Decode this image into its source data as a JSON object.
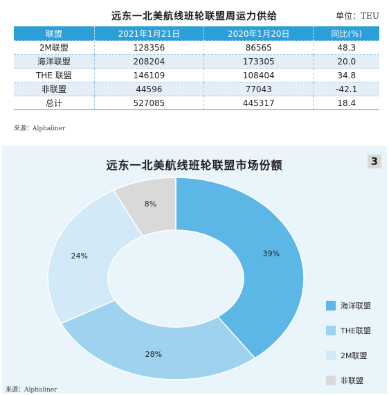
{
  "table": {
    "title": "远东一北美航线班轮联盟周运力供给",
    "unit": "单位：TEU",
    "headers": [
      "联盟",
      "2021年1月21日",
      "2020年1月20日",
      "同比(%)"
    ],
    "rows": [
      [
        "2M联盟",
        "128356",
        "86565",
        "48.3"
      ],
      [
        "海洋联盟",
        "208204",
        "173305",
        "20.0"
      ],
      [
        "THE 联盟",
        "146109",
        "108404",
        "34.8"
      ],
      [
        "非联盟",
        "44596",
        "77043",
        "-42.1"
      ],
      [
        "总计",
        "527085",
        "445317",
        "18.4"
      ]
    ],
    "source": "来源：Alphaliner"
  },
  "chart_data": {
    "type": "pie",
    "title": "远东一北美航线班轮联盟市场份额",
    "figure_number": "3",
    "categories": [
      "海洋联盟",
      "THE联盟",
      "2M联盟",
      "非联盟"
    ],
    "values": [
      39,
      28,
      24,
      8
    ],
    "labels": [
      "39%",
      "28%",
      "24%",
      "8%"
    ],
    "colors": [
      "#5cb6e6",
      "#9ed2ef",
      "#d2e9f7",
      "#d9d9d9"
    ],
    "legend": "right",
    "source": "来源：Alphaliner"
  }
}
